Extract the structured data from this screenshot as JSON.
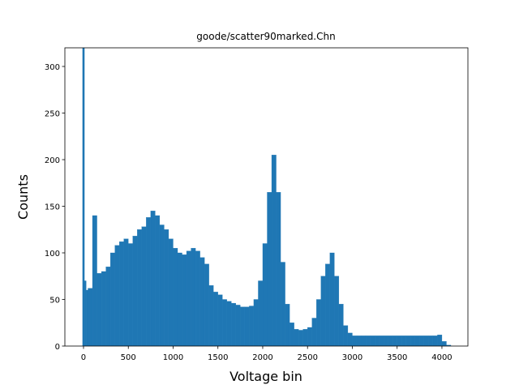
{
  "chart_data": {
    "type": "histogram",
    "title": "goode/scatter90marked.Chn",
    "xlabel": "Voltage bin",
    "ylabel": "Counts",
    "color": "#1f77b4",
    "bins": [
      -10,
      10,
      30,
      50,
      100,
      150,
      200,
      250,
      300,
      350,
      400,
      450,
      500,
      550,
      600,
      650,
      700,
      750,
      800,
      850,
      900,
      950,
      1000,
      1050,
      1100,
      1150,
      1200,
      1250,
      1300,
      1350,
      1400,
      1450,
      1500,
      1550,
      1600,
      1650,
      1700,
      1750,
      1800,
      1850,
      1900,
      1950,
      2000,
      2050,
      2100,
      2150,
      2200,
      2250,
      2300,
      2350,
      2400,
      2450,
      2500,
      2550,
      2600,
      2650,
      2700,
      2750,
      2800,
      2850,
      2900,
      2950,
      3000,
      3050,
      3100,
      3150,
      3200,
      3250,
      3300,
      3350,
      3400,
      3450,
      3500,
      3550,
      3600,
      3650,
      3700,
      3750,
      3800,
      3850,
      3900,
      3950,
      4000,
      4050,
      4100
    ],
    "counts": [
      320,
      70,
      60,
      62,
      140,
      78,
      80,
      85,
      100,
      108,
      112,
      115,
      110,
      118,
      125,
      128,
      138,
      145,
      140,
      130,
      125,
      115,
      105,
      100,
      98,
      102,
      105,
      102,
      95,
      88,
      65,
      58,
      55,
      50,
      48,
      46,
      44,
      42,
      42,
      43,
      50,
      70,
      110,
      165,
      205,
      165,
      90,
      45,
      25,
      18,
      17,
      18,
      20,
      30,
      50,
      75,
      88,
      100,
      75,
      45,
      22,
      14,
      11,
      11,
      11,
      11,
      11,
      11,
      11,
      11,
      11,
      11,
      11,
      11,
      11,
      11,
      11,
      11,
      11,
      11,
      11,
      12,
      5,
      1
    ],
    "xlim": [
      -208,
      4290
    ],
    "ylim": [
      0,
      320
    ],
    "xticks": [
      0,
      500,
      1000,
      1500,
      2000,
      2500,
      3000,
      3500,
      4000
    ],
    "yticks": [
      0,
      50,
      100,
      150,
      200,
      250,
      300
    ]
  }
}
